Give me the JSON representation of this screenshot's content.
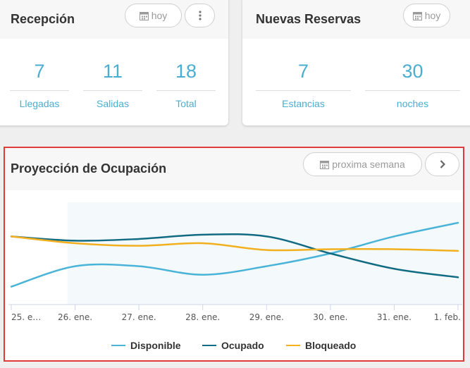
{
  "reception": {
    "title": "Recepción",
    "date_button": "hoy",
    "stats": [
      {
        "value": "7",
        "label": "Llegadas"
      },
      {
        "value": "11",
        "label": "Salidas"
      },
      {
        "value": "18",
        "label": "Total"
      }
    ]
  },
  "new_reservations": {
    "title": "Nuevas Reservas",
    "date_button": "hoy",
    "stats": [
      {
        "value": "7",
        "label": "Estancias"
      },
      {
        "value": "30",
        "label": "noches"
      }
    ]
  },
  "occupancy": {
    "title": "Proyección de Ocupación",
    "range_button": "proxima semana",
    "icons": {
      "calendar": "calendar-icon",
      "more": "more-vertical-icon",
      "next": "chevron-right-icon"
    }
  },
  "chart_data": {
    "type": "line",
    "categories": [
      "25. e…",
      "26. ene.",
      "27. ene.",
      "28. ene.",
      "29. ene.",
      "30. ene.",
      "31. ene.",
      "1. feb."
    ],
    "series": [
      {
        "name": "Disponible",
        "color": "#4ab4d8",
        "values": [
          21,
          45,
          45,
          35,
          45,
          60,
          80,
          96
        ]
      },
      {
        "name": "Ocupado",
        "color": "#116b82",
        "values": [
          80,
          75,
          77,
          82,
          80,
          60,
          42,
          32
        ]
      },
      {
        "name": "Bloqueado",
        "color": "#f2b01e",
        "values": [
          80,
          72,
          69,
          72,
          64,
          65,
          65,
          63
        ]
      }
    ],
    "ylim": [
      0,
      120
    ],
    "highlight_from_index": 1,
    "grid": false,
    "legend": "bottom"
  }
}
